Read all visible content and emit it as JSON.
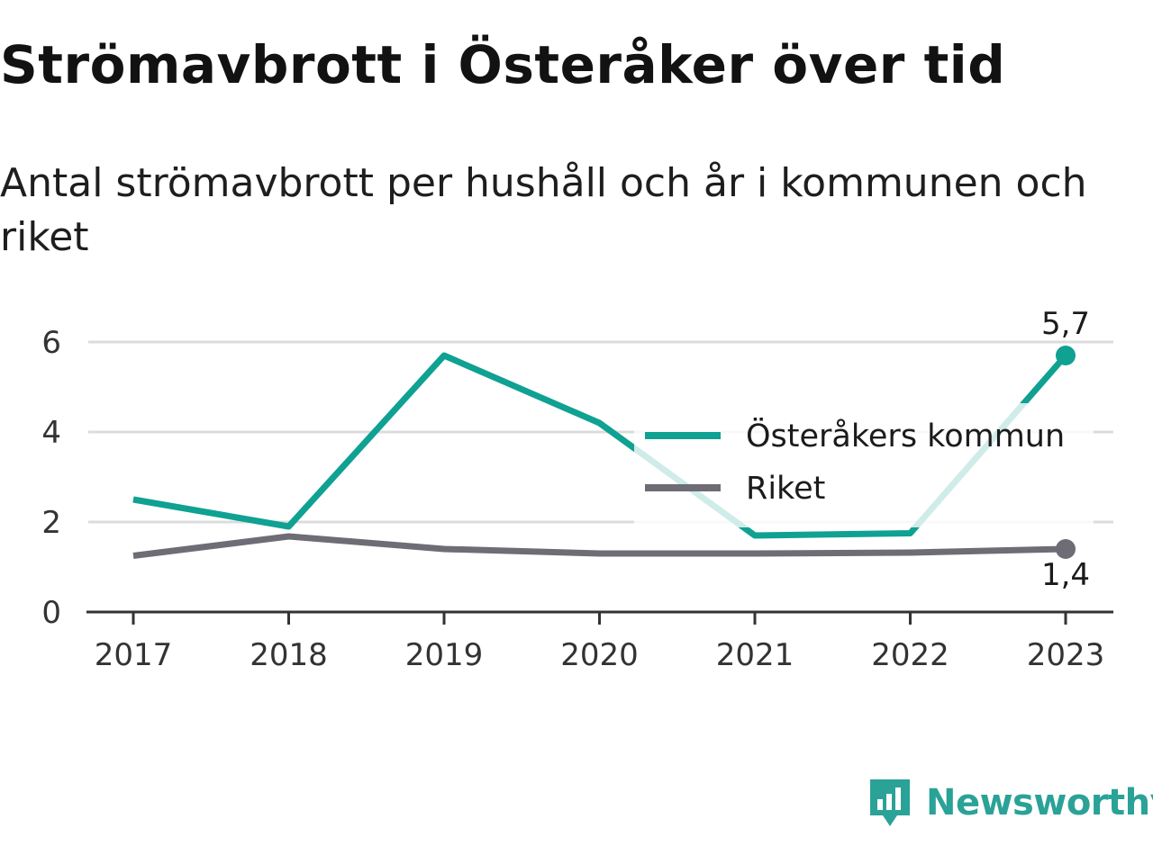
{
  "title": "Strömavbrott i Österåker över tid",
  "subtitle": "Antal strömavbrott per hushåll och år i kommunen och riket",
  "brand": {
    "name": "Newsworthy",
    "icon": "newsworthy-logo-icon",
    "color": "#2aa298"
  },
  "chart_data": {
    "type": "line",
    "categories": [
      "2017",
      "2018",
      "2019",
      "2020",
      "2021",
      "2022",
      "2023"
    ],
    "ylim": [
      0,
      6.6
    ],
    "yticks": [
      0,
      2,
      4,
      6
    ],
    "ytick_labels": [
      "0",
      "2",
      "4",
      "6"
    ],
    "grid": true,
    "legend_position": "right",
    "series": [
      {
        "name": "Österåkers kommun",
        "color": "#0fa192",
        "values": [
          2.5,
          1.9,
          5.7,
          4.2,
          1.7,
          1.75,
          5.7
        ],
        "end_label": "5,7"
      },
      {
        "name": "Riket",
        "color": "#6e6d75",
        "values": [
          1.25,
          1.68,
          1.4,
          1.3,
          1.3,
          1.32,
          1.4
        ],
        "end_label": "1,4"
      }
    ]
  }
}
